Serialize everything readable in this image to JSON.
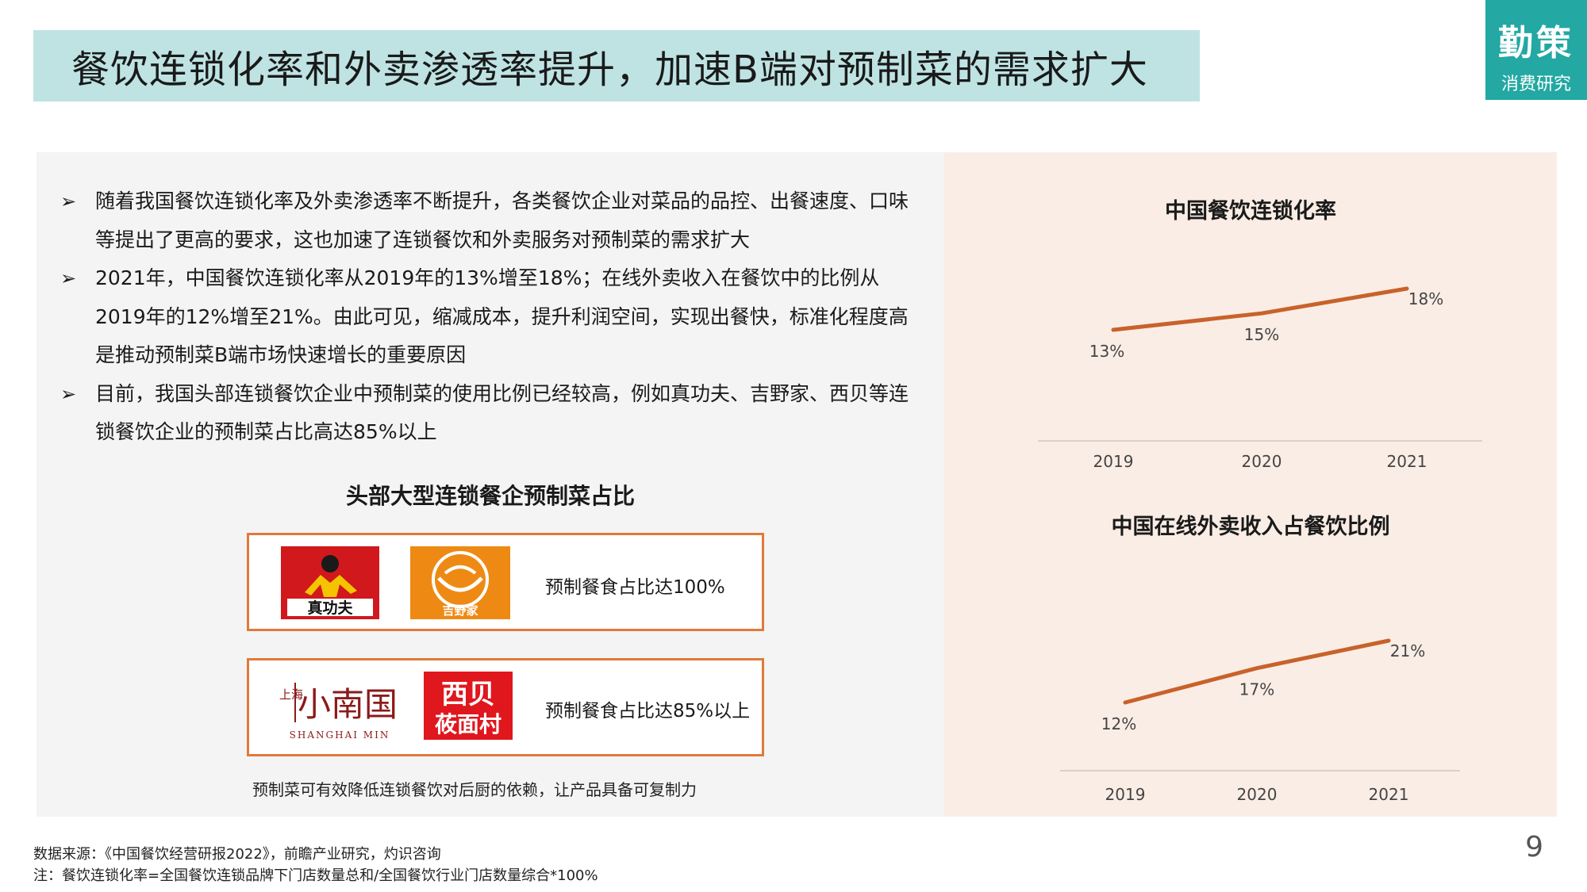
{
  "header": {
    "title": "餐饮连锁化率和外卖渗透率提升，加速B端对预制菜的需求扩大",
    "brand_name": "勤策",
    "brand_sub": "消费研究"
  },
  "bullets": [
    "随着我国餐饮连锁化率及外卖渗透率不断提升，各类餐饮企业对菜品的品控、出餐速度、口味等提出了更高的要求，这也加速了连锁餐饮和外卖服务对预制菜的需求扩大",
    "2021年，中国餐饮连锁化率从2019年的13%增至18%；在线外卖收入在餐饮中的比例从2019年的12%增至21%。由此可见，缩减成本，提升利润空间，实现出餐快，标准化程度高是推动预制菜B端市场快速增长的重要原因",
    "目前，我国头部连锁餐饮企业中预制菜的使用比例已经较高，例如真功夫、吉野家、西贝等连锁餐饮企业的预制菜占比高达85%以上"
  ],
  "bullet_marker": "➢",
  "section": {
    "title": "头部大型连锁餐企预制菜占比",
    "group1": {
      "text": "预制餐食占比达100%",
      "logo1": "真功夫",
      "logo2": "吉野家"
    },
    "group2": {
      "text": "预制餐食占比达85%以上",
      "logo1_small": "上海",
      "logo1_main": "小南国",
      "logo1_en": "SHANGHAI MIN",
      "logo2_top": "西贝",
      "logo2_bottom": "莜面村"
    },
    "footnote": "预制菜可有效降低连锁餐饮对后厨的依赖，让产品具备可复制力"
  },
  "chart_data": [
    {
      "type": "line",
      "title": "中国餐饮连锁化率",
      "categories": [
        "2019",
        "2020",
        "2021"
      ],
      "values": [
        13,
        15,
        18
      ],
      "labels": [
        "13%",
        "15%",
        "18%"
      ],
      "color": "#c8622a",
      "grid": false
    },
    {
      "type": "line",
      "title": "中国在线外卖收入占餐饮比例",
      "categories": [
        "2019",
        "2020",
        "2021"
      ],
      "values": [
        12,
        17,
        21
      ],
      "labels": [
        "12%",
        "17%",
        "21%"
      ],
      "color": "#c8622a",
      "grid": false
    }
  ],
  "footer": {
    "source": "数据来源：《中国餐饮经营研报2022》，前瞻产业研究，灼识咨询",
    "note": "注：餐饮连锁化率=全国餐饮连锁品牌下门店数量总和/全国餐饮行业门店数量综合*100%",
    "page": "9"
  }
}
